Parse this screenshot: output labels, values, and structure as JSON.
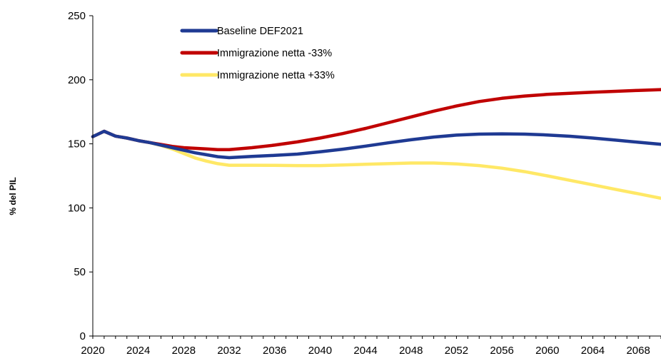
{
  "chart_data": {
    "type": "line",
    "ylabel": "% del PIL",
    "xlabel": "",
    "xlim": [
      2020,
      2070
    ],
    "ylim": [
      0,
      250
    ],
    "yticks": [
      0,
      50,
      100,
      150,
      200,
      250
    ],
    "xticks": [
      2020,
      2024,
      2028,
      2032,
      2036,
      2040,
      2044,
      2048,
      2052,
      2056,
      2060,
      2064,
      2068
    ],
    "grid": false,
    "legend_position": "top-left",
    "x": [
      2020,
      2021,
      2022,
      2023,
      2024,
      2025,
      2026,
      2027,
      2028,
      2029,
      2030,
      2031,
      2032,
      2034,
      2036,
      2038,
      2040,
      2042,
      2044,
      2046,
      2048,
      2050,
      2052,
      2054,
      2056,
      2058,
      2060,
      2062,
      2064,
      2066,
      2068,
      2070
    ],
    "series": [
      {
        "name": "Baseline DEF2021",
        "color": "#1f3a93",
        "values": [
          155.6,
          159.8,
          156.0,
          154.5,
          152.5,
          151.0,
          149.0,
          147.0,
          145.0,
          143.0,
          141.5,
          140.0,
          139.2,
          140.2,
          141.0,
          142.0,
          143.8,
          145.8,
          148.2,
          150.8,
          153.2,
          155.3,
          156.8,
          157.6,
          157.8,
          157.6,
          156.9,
          155.9,
          154.5,
          152.9,
          151.2,
          149.6
        ]
      },
      {
        "name": "Immigrazione netta -33%",
        "color": "#c00000",
        "values": [
          155.6,
          159.8,
          156.0,
          154.5,
          152.5,
          151.0,
          149.5,
          148.0,
          147.0,
          146.5,
          146.0,
          145.5,
          145.5,
          147.0,
          149.0,
          151.5,
          154.5,
          158.0,
          162.0,
          166.5,
          171.0,
          175.5,
          179.5,
          183.0,
          185.5,
          187.3,
          188.6,
          189.5,
          190.3,
          191.0,
          191.7,
          192.3
        ]
      },
      {
        "name": "Immigrazione netta +33%",
        "color": "#ffe866",
        "values": [
          155.6,
          159.8,
          156.0,
          154.5,
          152.5,
          151.0,
          148.8,
          146.0,
          142.5,
          139.0,
          136.5,
          134.5,
          133.3,
          133.3,
          133.2,
          133.0,
          133.0,
          133.5,
          134.0,
          134.5,
          135.0,
          135.0,
          134.3,
          133.0,
          131.0,
          128.3,
          125.0,
          121.5,
          118.0,
          114.5,
          111.0,
          107.5
        ]
      }
    ]
  }
}
